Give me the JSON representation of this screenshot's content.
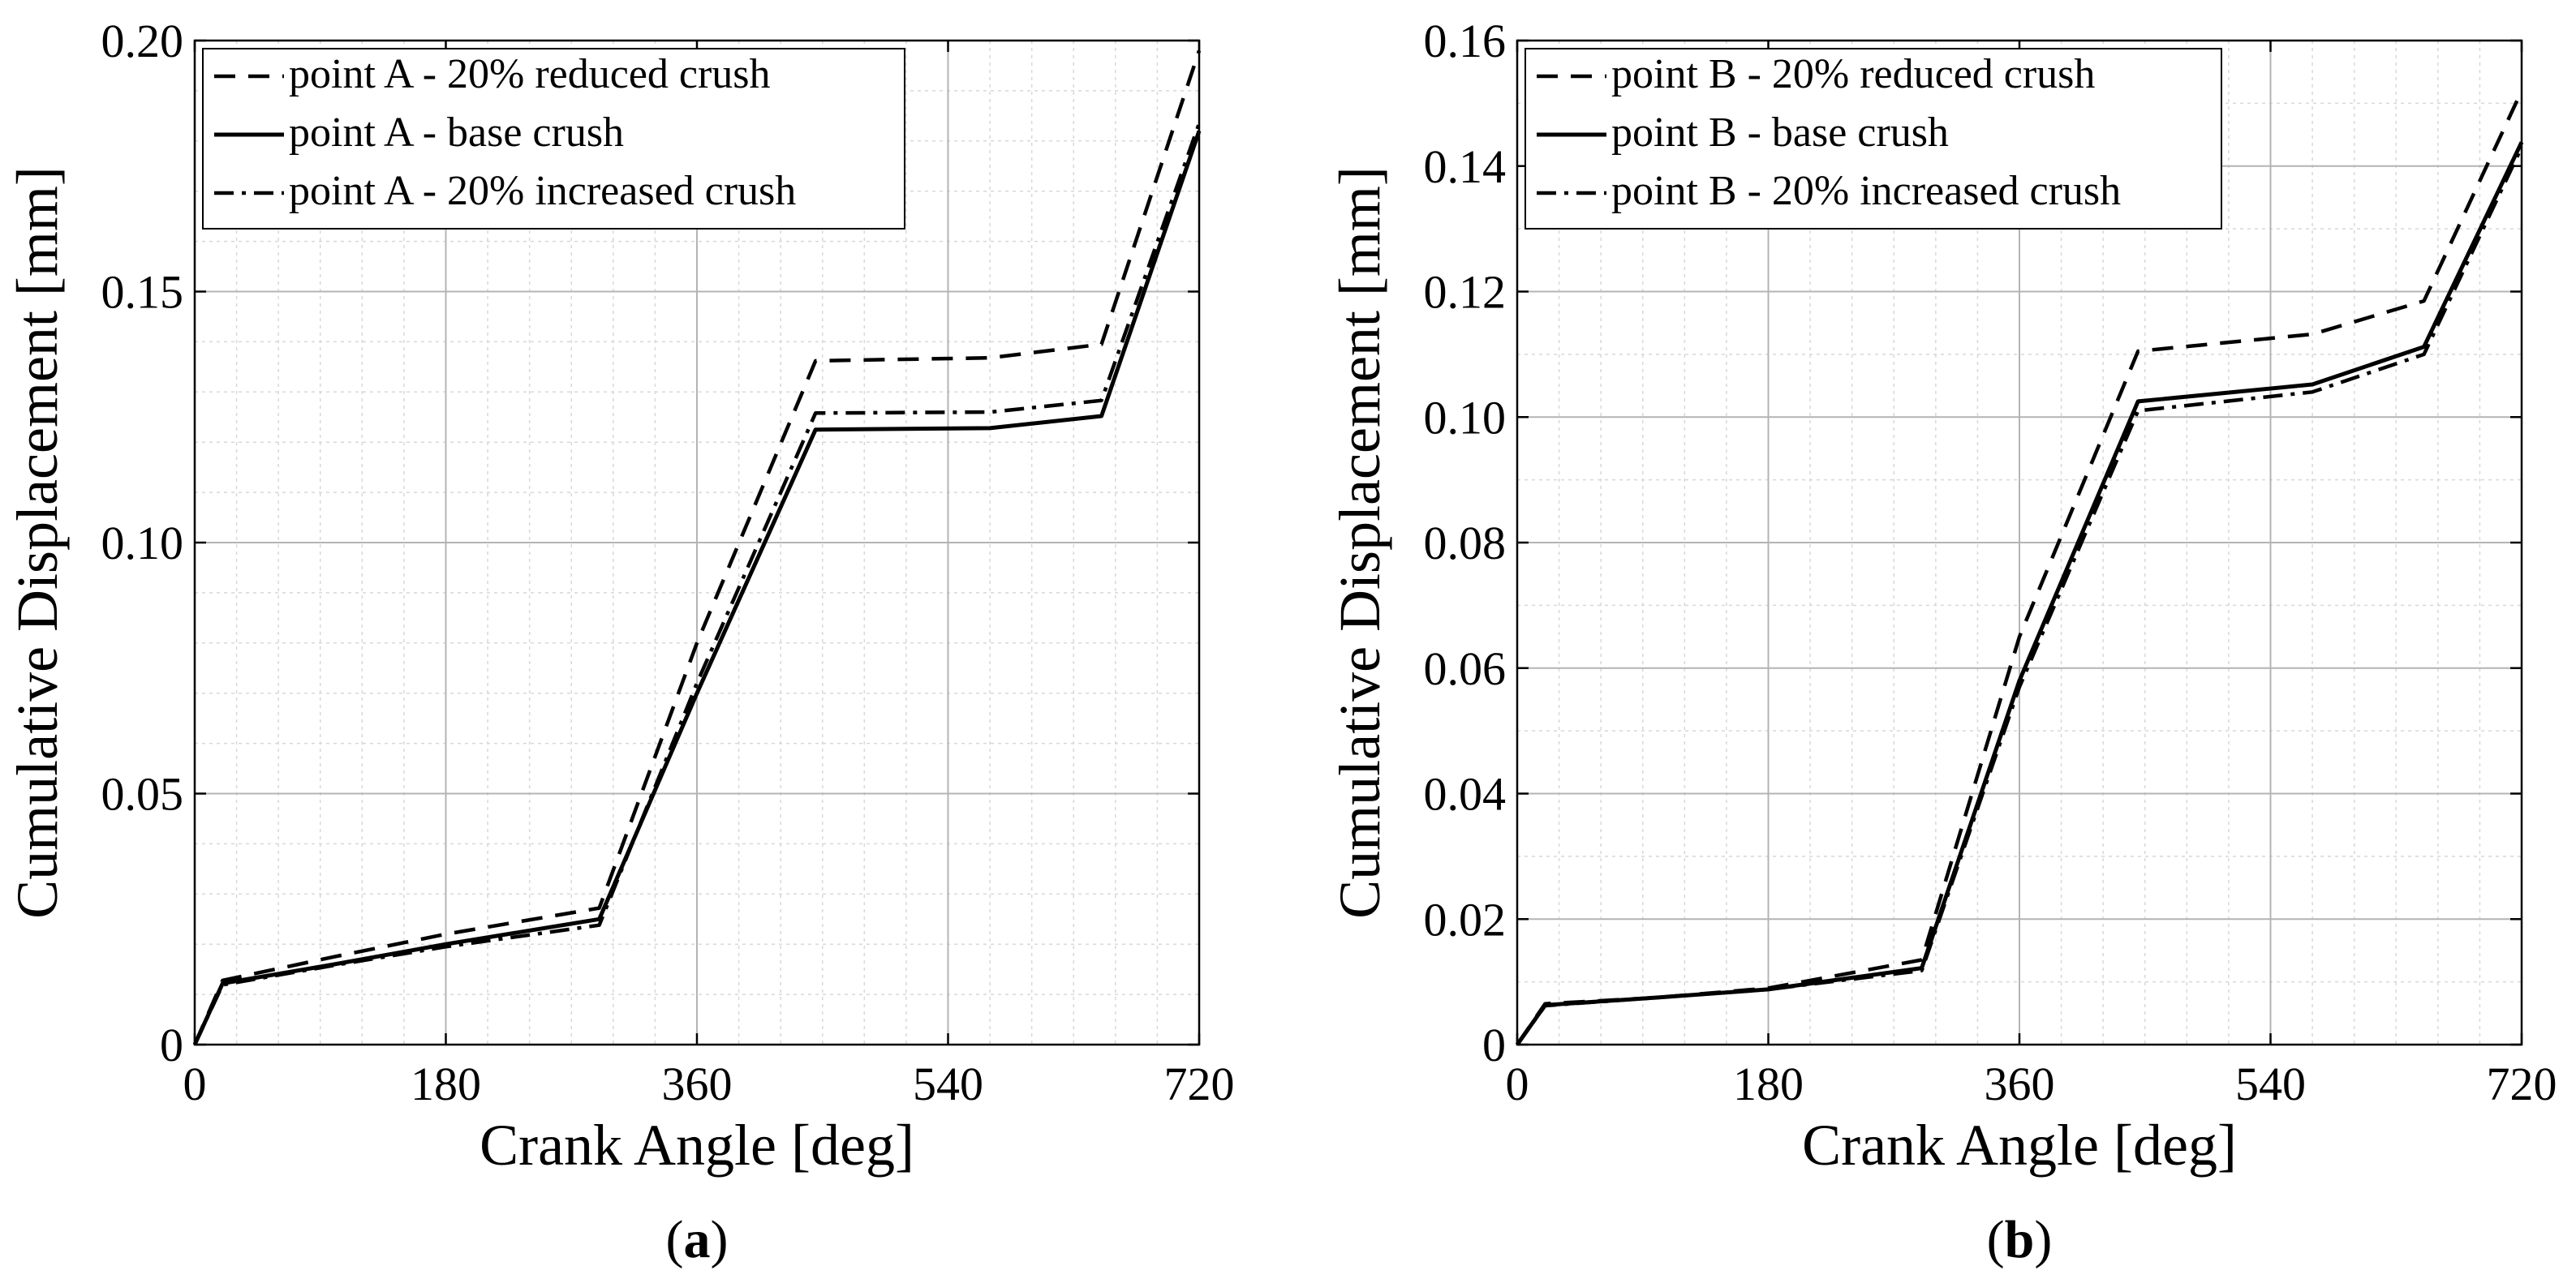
{
  "chart_data": [
    {
      "type": "line",
      "panel_label": "(a)",
      "panel_letter": "a",
      "xlabel": "Crank Angle [deg]",
      "ylabel": "Cumulative Displacement [mm]",
      "xlim": [
        0,
        720
      ],
      "ylim": [
        0,
        0.2
      ],
      "xticks": [
        0,
        180,
        360,
        540,
        720
      ],
      "xtick_labels": [
        "0",
        "180",
        "360",
        "540",
        "720"
      ],
      "yticks": [
        0,
        0.05,
        0.1,
        0.15,
        0.2
      ],
      "ytick_labels": [
        "0",
        "0.05",
        "0.10",
        "0.15",
        "0.20"
      ],
      "x_minor_step": 30,
      "y_minor_step": 0.01,
      "grid": true,
      "legend_position": "top-left",
      "series": [
        {
          "name": "point A - 20% reduced crush",
          "style": "dashed",
          "x": [
            0,
            20,
            100,
            180,
            290,
            360,
            445,
            570,
            650,
            720
          ],
          "y": [
            0,
            0.0128,
            0.0175,
            0.022,
            0.0272,
            0.08,
            0.1362,
            0.1368,
            0.1395,
            0.198
          ]
        },
        {
          "name": "point A - base crush",
          "style": "solid",
          "x": [
            0,
            20,
            100,
            180,
            290,
            360,
            445,
            570,
            650,
            720
          ],
          "y": [
            0,
            0.0122,
            0.016,
            0.02,
            0.025,
            0.07,
            0.1225,
            0.1228,
            0.1252,
            0.182
          ]
        },
        {
          "name": "point A - 20% increased crush",
          "style": "dashdot",
          "x": [
            0,
            20,
            100,
            180,
            290,
            360,
            445,
            570,
            650,
            720
          ],
          "y": [
            0,
            0.0119,
            0.0158,
            0.0195,
            0.0238,
            0.072,
            0.1258,
            0.126,
            0.1283,
            0.1835
          ]
        }
      ]
    },
    {
      "type": "line",
      "panel_label": "(b)",
      "panel_letter": "b",
      "xlabel": "Crank Angle [deg]",
      "ylabel": "Cumulative Displacement [mm]",
      "xlim": [
        0,
        720
      ],
      "ylim": [
        0,
        0.16
      ],
      "xticks": [
        0,
        180,
        360,
        540,
        720
      ],
      "xtick_labels": [
        "0",
        "180",
        "360",
        "540",
        "720"
      ],
      "yticks": [
        0,
        0.02,
        0.04,
        0.06,
        0.08,
        0.1,
        0.12,
        0.14,
        0.16
      ],
      "ytick_labels": [
        "0",
        "0.02",
        "0.04",
        "0.06",
        "0.08",
        "0.10",
        "0.12",
        "0.14",
        "0.16"
      ],
      "x_minor_step": 30,
      "y_minor_step": 0.01,
      "grid": true,
      "legend_position": "top-left",
      "series": [
        {
          "name": "point B - 20% reduced crush",
          "style": "dashed",
          "x": [
            0,
            20,
            100,
            180,
            290,
            360,
            445,
            570,
            650,
            720
          ],
          "y": [
            0,
            0.0065,
            0.0075,
            0.009,
            0.0135,
            0.065,
            0.1105,
            0.1132,
            0.1185,
            0.152
          ]
        },
        {
          "name": "point B - base crush",
          "style": "solid",
          "x": [
            0,
            20,
            100,
            180,
            290,
            360,
            445,
            570,
            650,
            720
          ],
          "y": [
            0,
            0.0063,
            0.0075,
            0.0088,
            0.0122,
            0.058,
            0.1025,
            0.1052,
            0.1112,
            0.1438
          ]
        },
        {
          "name": "point B - 20% increased crush",
          "style": "dashdot",
          "x": [
            0,
            20,
            100,
            180,
            290,
            360,
            445,
            570,
            650,
            720
          ],
          "y": [
            0,
            0.0062,
            0.0075,
            0.0088,
            0.0118,
            0.057,
            0.101,
            0.104,
            0.11,
            0.143
          ]
        }
      ]
    }
  ]
}
